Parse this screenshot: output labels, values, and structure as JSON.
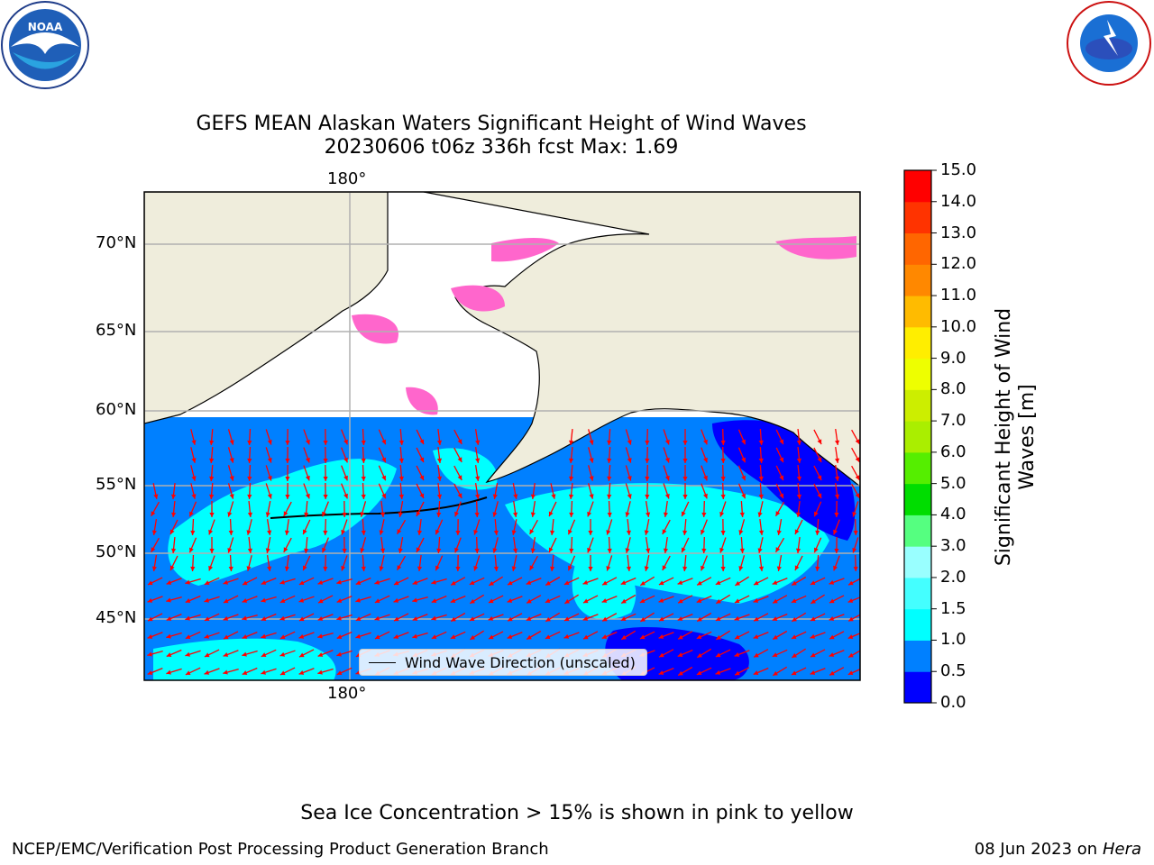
{
  "title": {
    "line1": "GEFS MEAN Alaskan Waters Significant Height of Wind Waves",
    "line2": "20230606 t06z 336h fcst   Max: 1.69"
  },
  "map": {
    "lat_labels": [
      "70°N",
      "65°N",
      "60°N",
      "55°N",
      "50°N",
      "45°N"
    ],
    "lon_label_top": "180°",
    "lon_label_bottom": "180°",
    "legend_label": "Wind Wave Direction (unscaled)",
    "colors": {
      "land": "#efeddc",
      "ocean_low": "#0000ff",
      "ocean_mid": "#0080ff",
      "ocean_high": "#00ffff",
      "ice_pink": "#ff66cc",
      "arrow": "#ff0000",
      "grid": "#b0b0b0"
    }
  },
  "colorbar": {
    "label": "Significant Height of Wind Waves [m]",
    "ticks": [
      "0.0",
      "0.5",
      "1.0",
      "1.5",
      "2.0",
      "3.0",
      "4.0",
      "5.0",
      "6.0",
      "7.0",
      "8.0",
      "9.0",
      "10.0",
      "11.0",
      "12.0",
      "13.0",
      "14.0",
      "15.0"
    ],
    "colors": [
      "#0000ff",
      "#0080ff",
      "#00ffff",
      "#44ffff",
      "#99ffff",
      "#55ff80",
      "#00dd00",
      "#55ee00",
      "#aaee00",
      "#ccee00",
      "#eeff00",
      "#ffee00",
      "#ffbb00",
      "#ff8800",
      "#ff6600",
      "#ff3300",
      "#ff0000"
    ]
  },
  "footer": {
    "note": "Sea Ice Concentration > 15% is shown in pink to yellow",
    "left": "NCEP/EMC/Verification Post Processing Product Generation Branch",
    "right_date": "08 Jun 2023 on",
    "right_host": "Hera"
  }
}
